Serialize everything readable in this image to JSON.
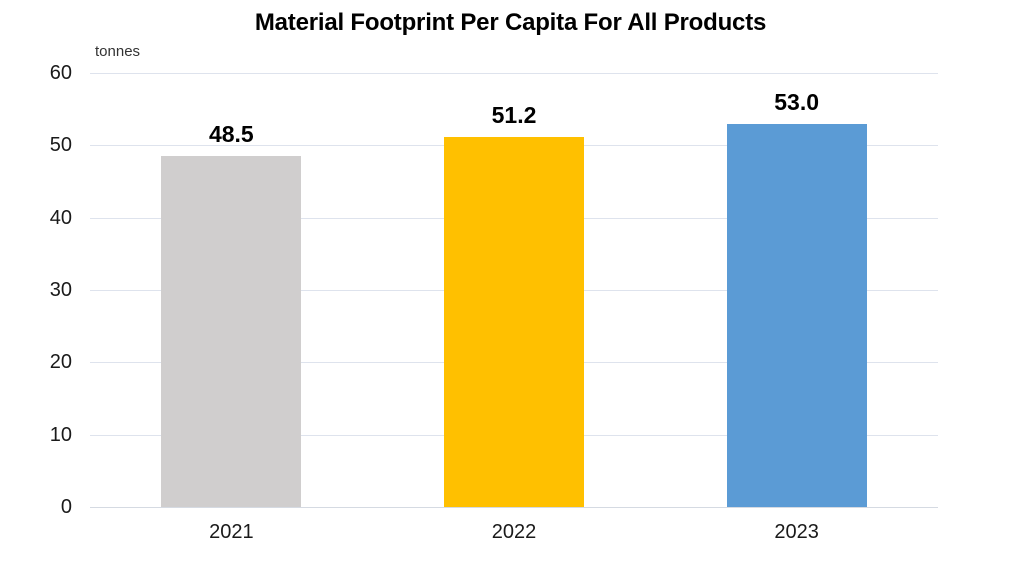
{
  "chart_data": {
    "type": "bar",
    "title": "Material Footprint Per Capita For All Products",
    "unit_label": "tonnes",
    "categories": [
      "2021",
      "2022",
      "2023"
    ],
    "values": [
      48.5,
      51.2,
      53.0
    ],
    "data_labels": [
      "48.5",
      "51.2",
      "53.0"
    ],
    "bar_colors": [
      "#D0CECE",
      "#FFC000",
      "#5B9BD5"
    ],
    "ylim": [
      0,
      60
    ],
    "yticks": [
      0,
      10,
      20,
      30,
      40,
      50,
      60
    ],
    "grid": true,
    "legend": "none",
    "xlabel": "",
    "ylabel": "tonnes",
    "colors": {
      "gridline": "#DEE3ED",
      "axis_line": "#D5DAE2",
      "title_text": "#000000",
      "tick_text": "#1A1A1A",
      "background": "#FFFFFF"
    }
  }
}
